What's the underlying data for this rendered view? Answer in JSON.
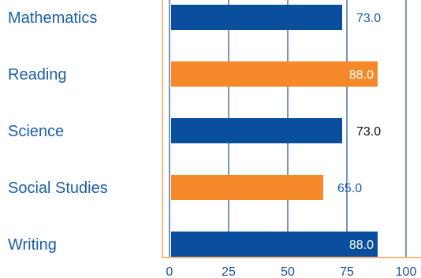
{
  "chart_data": {
    "type": "bar",
    "orientation": "horizontal",
    "categories": [
      "Mathematics",
      "Reading",
      "Science",
      "Social Studies",
      "Writing"
    ],
    "values": [
      73.0,
      88.0,
      73.0,
      65.0,
      88.0
    ],
    "value_labels": [
      "73.0",
      "88.0",
      "73.0",
      "65.0",
      "88.0"
    ],
    "bar_colors": [
      "#0a4f9e",
      "#f5892a",
      "#0a4f9e",
      "#f5892a",
      "#0a4f9e"
    ],
    "value_label_colors": [
      "#1a5fa8",
      "#ffffff",
      "#111111",
      "#1a5fa8",
      "#ffffff"
    ],
    "xticks": [
      0,
      25,
      50,
      75,
      100
    ],
    "xtick_labels": [
      "0",
      "25",
      "50",
      "75",
      "100"
    ],
    "xlim": [
      0,
      100
    ],
    "grid": true,
    "frame_color": "#f0a050",
    "grid_color": "#1a4f8f",
    "title": "",
    "xlabel": "",
    "ylabel": ""
  }
}
